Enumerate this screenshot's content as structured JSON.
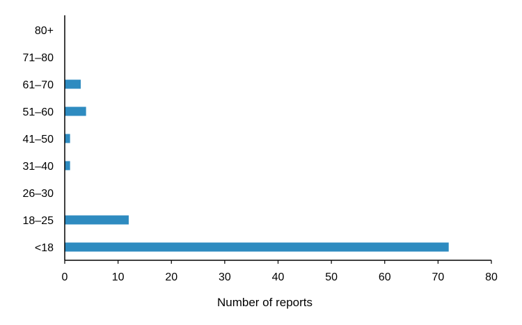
{
  "chart_data": {
    "type": "bar",
    "orientation": "horizontal",
    "categories": [
      "80+",
      "71–80",
      "61–70",
      "51–60",
      "41–50",
      "31–40",
      "26–30",
      "18–25",
      "<18"
    ],
    "values": [
      0,
      0,
      3,
      4,
      1,
      1,
      0,
      12,
      72
    ],
    "xlabel": "Number of reports",
    "ylabel": "",
    "xlim": [
      0,
      80
    ],
    "xticks": [
      "0",
      "10",
      "20",
      "30",
      "40",
      "50",
      "60",
      "70",
      "80"
    ],
    "grid": false,
    "legend": "none",
    "bar_color": "#2E8BC0"
  }
}
